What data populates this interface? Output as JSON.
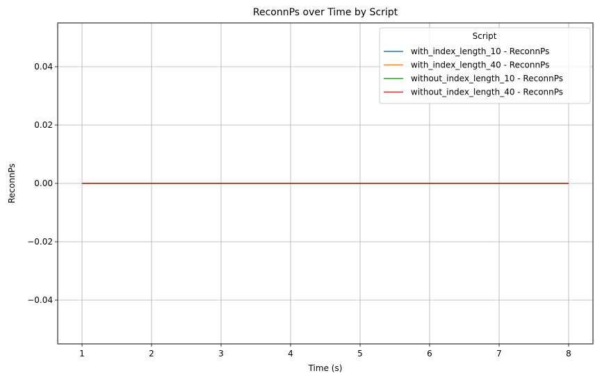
{
  "chart_data": {
    "type": "line",
    "title": "ReconnPs over Time by Script",
    "xlabel": "Time (s)",
    "ylabel": "ReconnPs",
    "xlim": [
      0.65,
      8.35
    ],
    "ylim": [
      -0.055,
      0.055
    ],
    "x_ticks": [
      1,
      2,
      3,
      4,
      5,
      6,
      7,
      8
    ],
    "x_tick_labels": [
      "1",
      "2",
      "3",
      "4",
      "5",
      "6",
      "7",
      "8"
    ],
    "y_ticks": [
      -0.04,
      -0.02,
      0.0,
      0.02,
      0.04
    ],
    "y_tick_labels": [
      "−0.04",
      "−0.02",
      "0.00",
      "0.02",
      "0.04"
    ],
    "grid": true,
    "legend": {
      "title": "Script",
      "placement": "top-right"
    },
    "x": [
      1,
      2,
      3,
      4,
      5,
      6,
      7,
      8
    ],
    "series": [
      {
        "name": "with_index_length_10 - ReconnPs",
        "color": "#1f77b4",
        "values": [
          0,
          0,
          0,
          0,
          0,
          0,
          0,
          0
        ]
      },
      {
        "name": "with_index_length_40 - ReconnPs",
        "color": "#ff7f0e",
        "values": [
          0,
          0,
          0,
          0,
          0,
          0,
          0,
          0
        ]
      },
      {
        "name": "without_index_length_10 - ReconnPs",
        "color": "#2ca02c",
        "values": [
          0,
          0,
          0,
          0,
          0,
          0,
          0,
          0
        ]
      },
      {
        "name": "without_index_length_40 - ReconnPs",
        "color": "#d62728",
        "values": [
          0,
          0,
          0,
          0,
          0,
          0,
          0,
          0
        ]
      }
    ]
  }
}
